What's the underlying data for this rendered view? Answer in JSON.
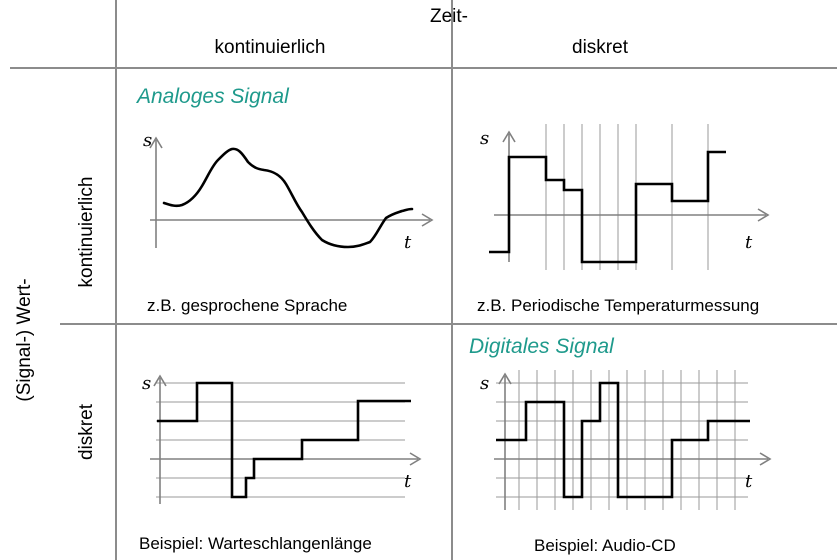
{
  "header": {
    "top": "Zeit-",
    "col1": "kontinuierlich",
    "col2": "diskret"
  },
  "side": {
    "outer": "(Signal-) Wert-",
    "row1": "kontinuierlich",
    "row2": "diskret"
  },
  "cells": {
    "analog": {
      "title": "Analoges Signal",
      "caption": "z.B. gesprochene Sprache",
      "y_axis": "s",
      "x_axis": "t"
    },
    "time_discrete": {
      "caption": "z.B. Periodische Temperaturmessung",
      "y_axis": "s",
      "x_axis": "t"
    },
    "value_discrete": {
      "caption": "Beispiel: Warteschlangenlänge",
      "y_axis": "s",
      "x_axis": "t"
    },
    "digital": {
      "title": "Digitales Signal",
      "caption": "Beispiel: Audio-CD",
      "y_axis": "s",
      "x_axis": "t"
    }
  },
  "colors": {
    "title": "#1f9a8c",
    "frame": "#8c8c8c"
  }
}
